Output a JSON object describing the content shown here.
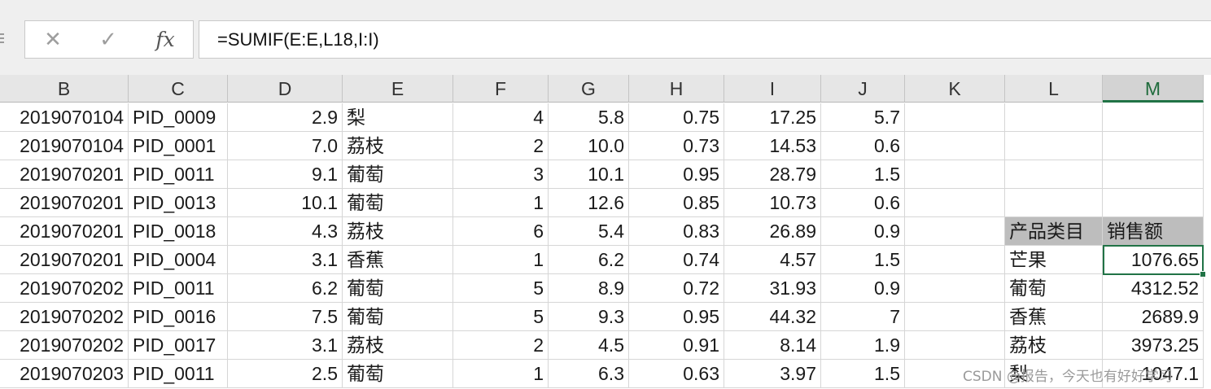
{
  "formula_bar": {
    "cancel_glyph": "✕",
    "enter_glyph": "✓",
    "fx_label": "fx",
    "formula": "=SUMIF(E:E,L18,I:I)"
  },
  "columns": [
    "B",
    "C",
    "D",
    "E",
    "F",
    "G",
    "H",
    "I",
    "J",
    "K",
    "L",
    "M"
  ],
  "active_column": "M",
  "rows": [
    [
      "2019070104",
      "PID_0009",
      "2.9",
      "梨",
      "4",
      "5.8",
      "0.75",
      "17.25",
      "5.7",
      "",
      "",
      ""
    ],
    [
      "2019070104",
      "PID_0001",
      "7.0",
      "荔枝",
      "2",
      "10.0",
      "0.73",
      "14.53",
      "0.6",
      "",
      "",
      ""
    ],
    [
      "2019070201",
      "PID_0011",
      "9.1",
      "葡萄",
      "3",
      "10.1",
      "0.95",
      "28.79",
      "1.5",
      "",
      "",
      ""
    ],
    [
      "2019070201",
      "PID_0013",
      "10.1",
      "葡萄",
      "1",
      "12.6",
      "0.85",
      "10.73",
      "0.6",
      "",
      "",
      ""
    ],
    [
      "2019070201",
      "PID_0018",
      "4.3",
      "荔枝",
      "6",
      "5.4",
      "0.83",
      "26.89",
      "0.9",
      "",
      "产品类目",
      "销售额"
    ],
    [
      "2019070201",
      "PID_0004",
      "3.1",
      "香蕉",
      "1",
      "6.2",
      "0.74",
      "4.57",
      "1.5",
      "",
      "芒果",
      "1076.65"
    ],
    [
      "2019070202",
      "PID_0011",
      "6.2",
      "葡萄",
      "5",
      "8.9",
      "0.72",
      "31.93",
      "0.9",
      "",
      "葡萄",
      "4312.52"
    ],
    [
      "2019070202",
      "PID_0016",
      "7.5",
      "葡萄",
      "5",
      "9.3",
      "0.95",
      "44.32",
      "7",
      "",
      "香蕉",
      "2689.9"
    ],
    [
      "2019070202",
      "PID_0017",
      "3.1",
      "荔枝",
      "2",
      "4.5",
      "0.91",
      "8.14",
      "1.9",
      "",
      "荔枝",
      "3973.25"
    ],
    [
      "2019070203",
      "PID_0011",
      "2.5",
      "葡萄",
      "1",
      "6.3",
      "0.63",
      "3.97",
      "1.5",
      "",
      "梨",
      "1047.1"
    ]
  ],
  "watermark": "CSDN @报告，今天也有好好学习"
}
